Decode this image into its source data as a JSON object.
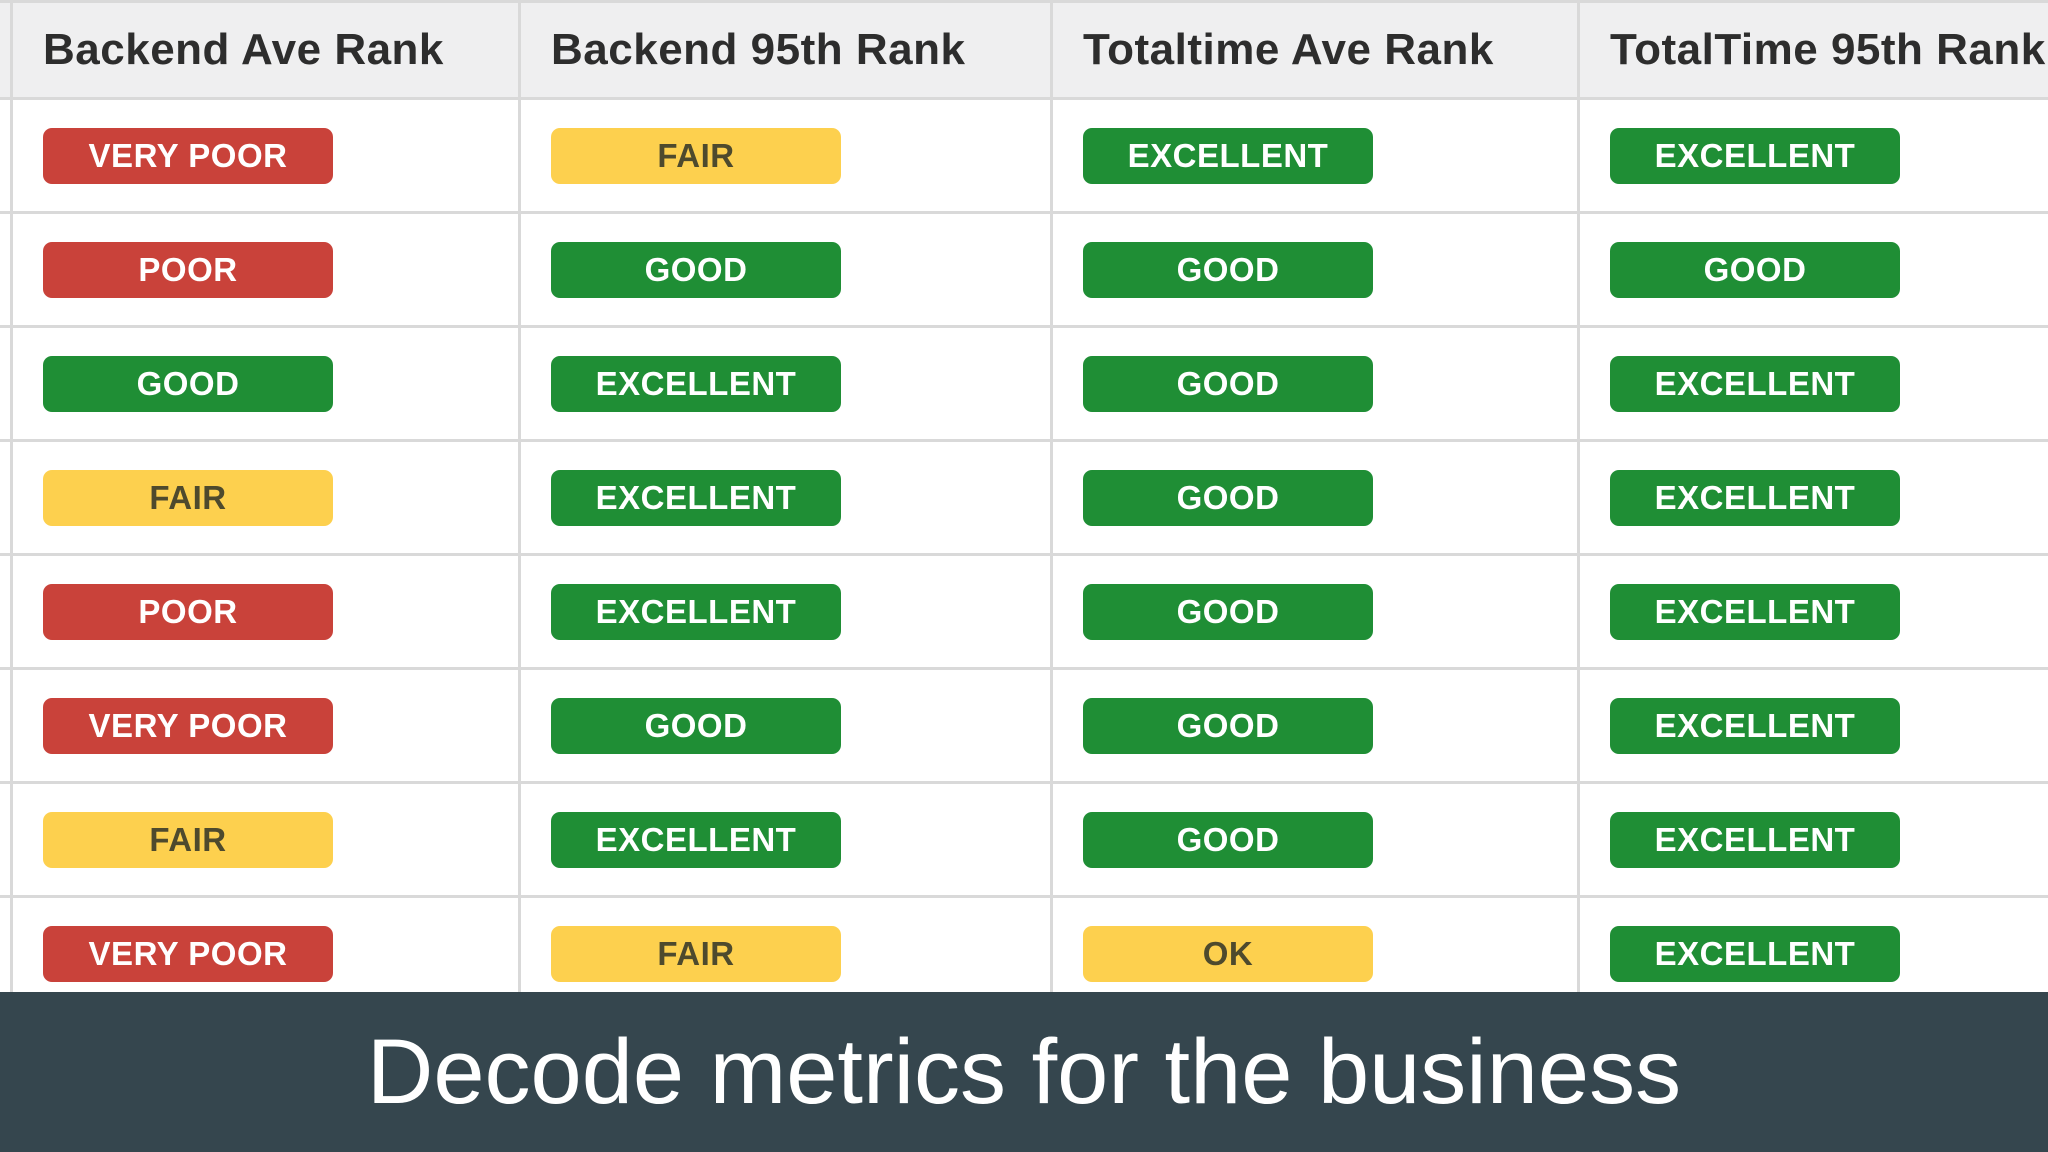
{
  "colors": {
    "badge-red": "#c9423a",
    "badge-green": "#1f8e35",
    "badge-yellow": "#fdd04e",
    "badge-yellow-text": "#4e4a2d",
    "badge-text": "#ffffff",
    "header-bg": "#efeff0",
    "grid-line": "#d9d9d9",
    "row-bg": "#ffffff",
    "caption-bg": "#35464e",
    "caption-text": "#ffffff"
  },
  "rank_styles": {
    "VERY POOR": "red",
    "POOR": "red",
    "FAIR": "yellow",
    "OK": "yellow",
    "GOOD": "green",
    "EXCELLENT": "green"
  },
  "table": {
    "headers": [
      "Backend Ave Rank",
      "Backend 95th Rank",
      "Totaltime Ave Rank",
      "TotalTime 95th Rank"
    ],
    "rows": [
      [
        "VERY POOR",
        "FAIR",
        "EXCELLENT",
        "EXCELLENT"
      ],
      [
        "POOR",
        "GOOD",
        "GOOD",
        "GOOD"
      ],
      [
        "GOOD",
        "EXCELLENT",
        "GOOD",
        "EXCELLENT"
      ],
      [
        "FAIR",
        "EXCELLENT",
        "GOOD",
        "EXCELLENT"
      ],
      [
        "POOR",
        "EXCELLENT",
        "GOOD",
        "EXCELLENT"
      ],
      [
        "VERY POOR",
        "GOOD",
        "GOOD",
        "EXCELLENT"
      ],
      [
        "FAIR",
        "EXCELLENT",
        "GOOD",
        "EXCELLENT"
      ],
      [
        "VERY POOR",
        "FAIR",
        "OK",
        "EXCELLENT"
      ]
    ]
  },
  "caption": {
    "text": "Decode metrics for the business"
  }
}
